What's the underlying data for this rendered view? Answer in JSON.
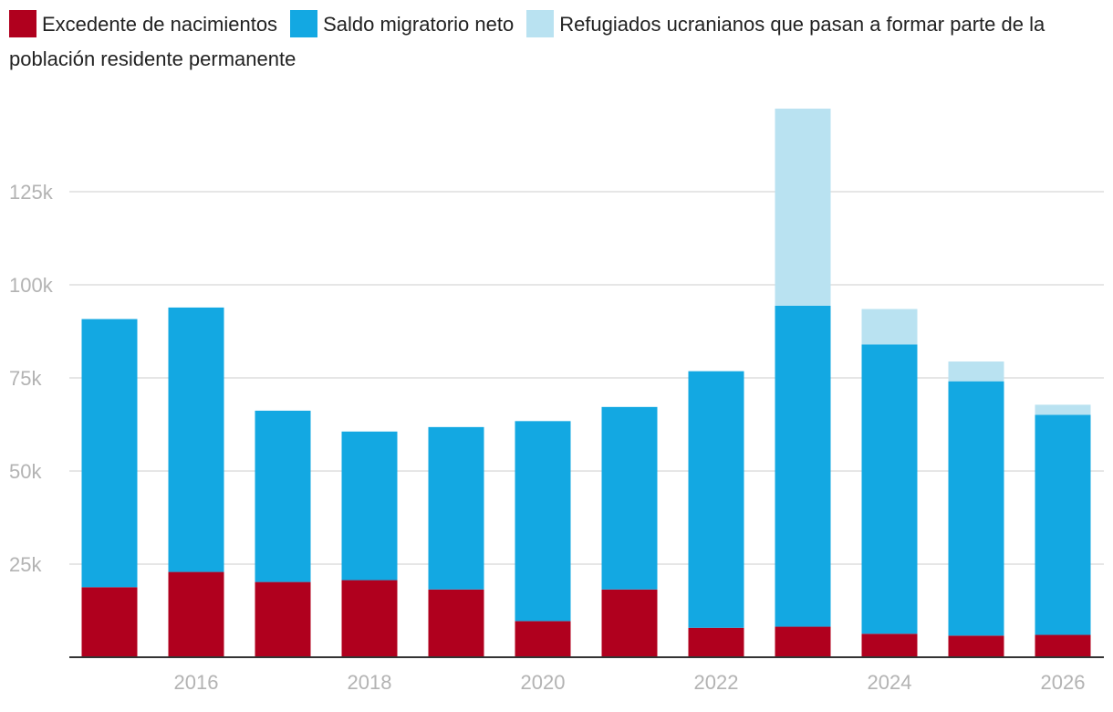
{
  "chart_data": {
    "type": "bar",
    "stacked": true,
    "legend_position": "top-left",
    "grid": true,
    "ylim": [
      0,
      150000
    ],
    "y_ticks": [
      25000,
      50000,
      75000,
      100000,
      125000
    ],
    "y_tick_labels": [
      "25k",
      "50k",
      "75k",
      "100k",
      "125k"
    ],
    "x_tick_years": [
      2016,
      2018,
      2020,
      2022,
      2024,
      2026
    ],
    "x_tick_labels": [
      "2016",
      "2018",
      "2020",
      "2022",
      "2024",
      "2026"
    ],
    "categories": [
      2015,
      2016,
      2017,
      2018,
      2019,
      2020,
      2021,
      2022,
      2023,
      2024,
      2025,
      2026
    ],
    "series": [
      {
        "name": "Excedente de nacimientos",
        "color": "#b0001e",
        "values": [
          18800,
          22900,
          20200,
          20700,
          18200,
          9700,
          18200,
          7900,
          8200,
          6300,
          5800,
          6000
        ]
      },
      {
        "name": "Saldo migratorio neto",
        "color": "#13a8e2",
        "values": [
          72000,
          71000,
          46000,
          39900,
          43600,
          53700,
          49000,
          68900,
          86200,
          77700,
          68300,
          59100
        ]
      },
      {
        "name": "Refugiados ucranianos que pasan a formar parte de la población residente permanente",
        "color": "#b9e2f1",
        "values": [
          0,
          0,
          0,
          0,
          0,
          0,
          0,
          0,
          52900,
          9500,
          5300,
          2700
        ]
      }
    ]
  }
}
